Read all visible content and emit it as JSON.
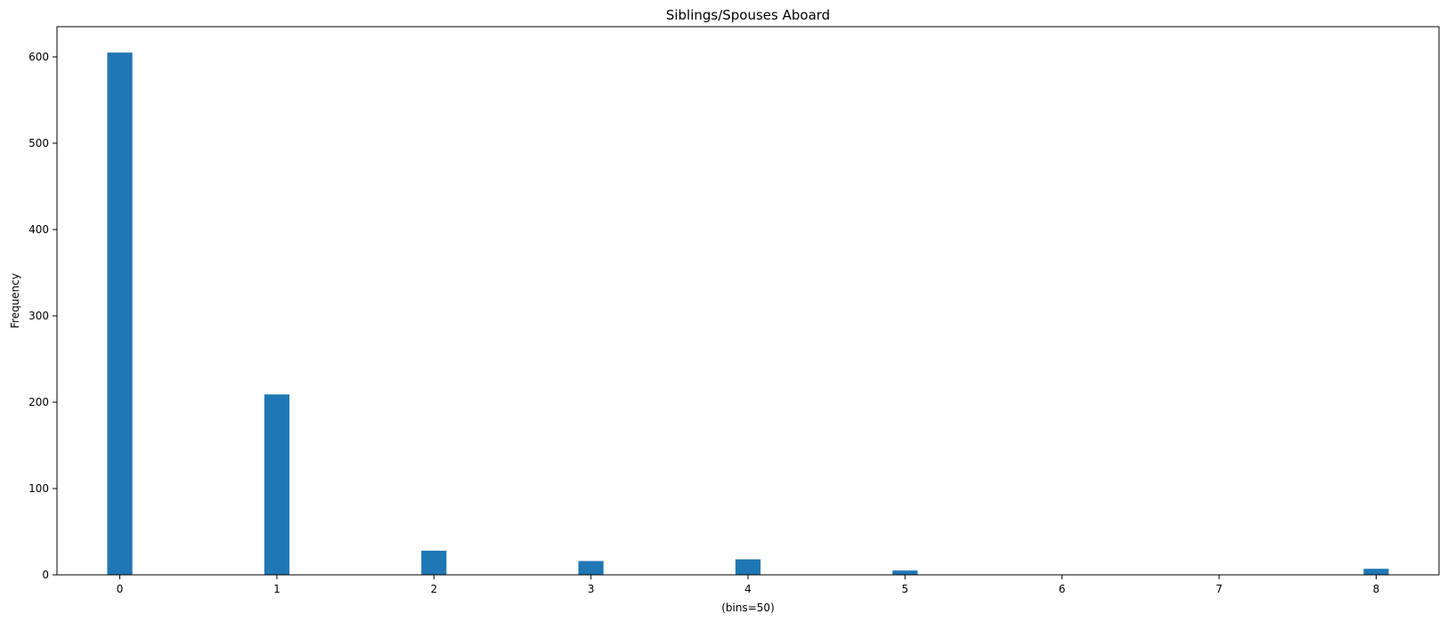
{
  "chart_data": {
    "type": "bar",
    "title": "Siblings/Spouses Aboard",
    "xlabel": "(bins=50)",
    "ylabel": "Frequency",
    "xlim": [
      -0.4,
      8.4
    ],
    "ylim": [
      0,
      635
    ],
    "x_ticks": [
      0,
      1,
      2,
      3,
      4,
      5,
      6,
      7,
      8
    ],
    "y_ticks": [
      0,
      100,
      200,
      300,
      400,
      500,
      600
    ],
    "bin_width": 0.16,
    "bars": [
      {
        "x": 0,
        "value": 605
      },
      {
        "x": 1,
        "value": 209
      },
      {
        "x": 2,
        "value": 28
      },
      {
        "x": 3,
        "value": 16
      },
      {
        "x": 4,
        "value": 18
      },
      {
        "x": 5,
        "value": 5
      },
      {
        "x": 8,
        "value": 7
      }
    ],
    "bar_color": "#1f77b4",
    "grid": false,
    "legend": "none"
  }
}
